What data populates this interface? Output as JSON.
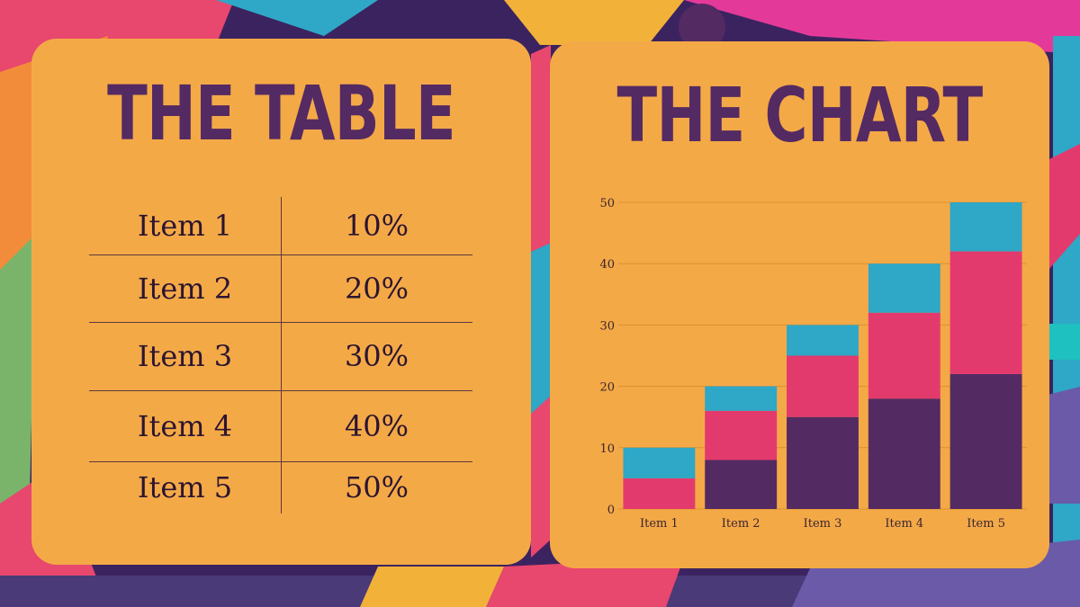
{
  "table_section": {
    "title": "THE TABLE",
    "rows": [
      {
        "label": "Item 1",
        "value": "10%"
      },
      {
        "label": "Item 2",
        "value": "20%"
      },
      {
        "label": "Item 3",
        "value": "30%"
      },
      {
        "label": "Item 4",
        "value": "40%"
      },
      {
        "label": "Item 5",
        "value": "50%"
      }
    ]
  },
  "chart_section": {
    "title": "THE CHART"
  },
  "colors": {
    "card": "#f4a947",
    "title": "#542a63",
    "series_dark": "#542a63",
    "series_pink": "#e33a6e",
    "series_cyan": "#2fa7c6"
  },
  "chart_data": {
    "type": "bar",
    "stacked": true,
    "categories": [
      "Item 1",
      "Item 2",
      "Item 3",
      "Item 4",
      "Item 5"
    ],
    "series": [
      {
        "values": [
          0,
          8,
          15,
          18,
          22
        ],
        "color": "#542a63"
      },
      {
        "values": [
          5,
          8,
          10,
          14,
          20
        ],
        "color": "#e33a6e"
      },
      {
        "values": [
          5,
          4,
          5,
          8,
          8
        ],
        "color": "#2fa7c6"
      }
    ],
    "ylim": [
      0,
      50
    ],
    "yticks": [
      0,
      10,
      20,
      30,
      40,
      50
    ],
    "grid": true,
    "legend": "none",
    "title": "",
    "xlabel": "",
    "ylabel": ""
  }
}
